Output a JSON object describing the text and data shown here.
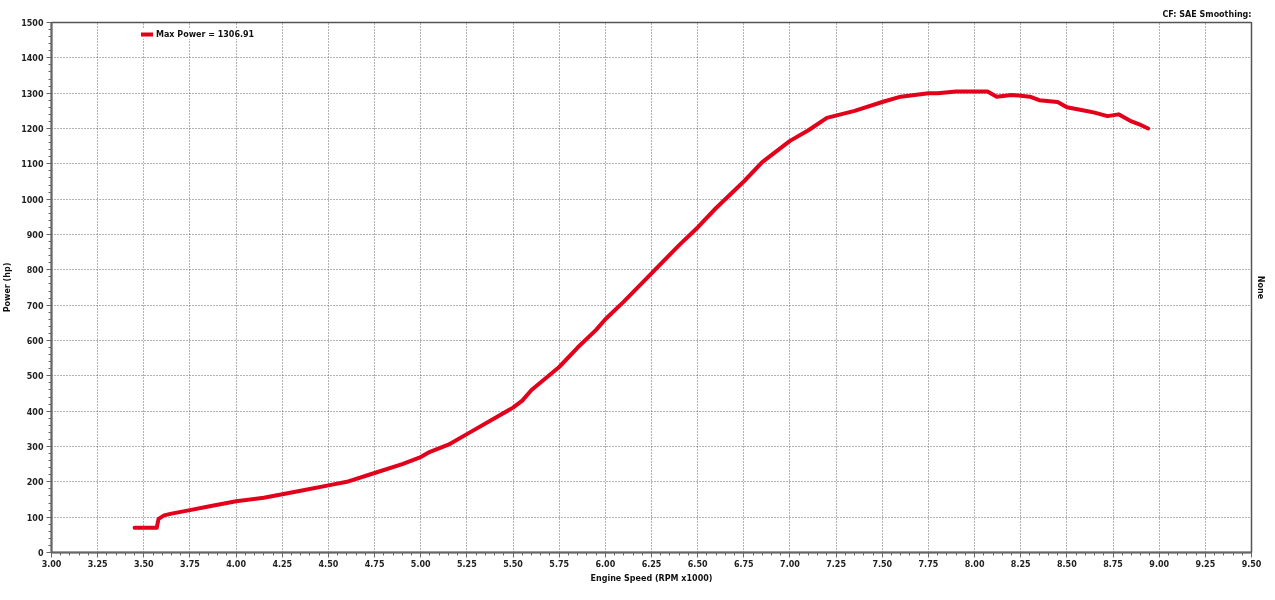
{
  "chart_data": {
    "type": "line",
    "xlabel": "Engine Speed (RPM x1000)",
    "ylabel": "Power (hp)",
    "annotations": [
      "CF: SAE Smoothing:",
      "None"
    ],
    "series": [
      {
        "name": "Max Power = 1306.91",
        "color": "#e2001a",
        "x": [
          3.45,
          3.5,
          3.55,
          3.57,
          3.58,
          3.61,
          3.65,
          3.75,
          3.85,
          4.0,
          4.15,
          4.25,
          4.35,
          4.5,
          4.6,
          4.75,
          4.9,
          5.0,
          5.05,
          5.15,
          5.25,
          5.4,
          5.5,
          5.55,
          5.6,
          5.75,
          5.85,
          5.95,
          6.0,
          6.1,
          6.25,
          6.4,
          6.5,
          6.6,
          6.75,
          6.85,
          7.0,
          7.1,
          7.2,
          7.35,
          7.5,
          7.6,
          7.75,
          7.8,
          7.9,
          8.0,
          8.07,
          8.12,
          8.2,
          8.3,
          8.35,
          8.45,
          8.5,
          8.6,
          8.65,
          8.72,
          8.78,
          8.85,
          8.9,
          8.94
        ],
        "values": [
          70,
          70,
          70,
          70,
          95,
          105,
          110,
          120,
          130,
          145,
          155,
          165,
          175,
          190,
          200,
          225,
          250,
          270,
          285,
          305,
          335,
          380,
          410,
          430,
          460,
          525,
          580,
          630,
          660,
          710,
          790,
          870,
          920,
          975,
          1050,
          1105,
          1165,
          1195,
          1230,
          1250,
          1275,
          1290,
          1300,
          1300,
          1305,
          1305,
          1305,
          1290,
          1295,
          1290,
          1280,
          1275,
          1260,
          1250,
          1245,
          1235,
          1240,
          1220,
          1210,
          1200
        ]
      }
    ],
    "xlim": [
      3.0,
      9.5
    ],
    "xticks": [
      {
        "value": 3.0,
        "label": "3.00"
      },
      3.25,
      {
        "value": 3.5,
        "label": "3.50"
      },
      3.75,
      {
        "value": 4.0,
        "label": "4.00"
      },
      4.25,
      {
        "value": 4.5,
        "label": "4.50"
      },
      4.75,
      {
        "value": 5.0,
        "label": "5.00"
      },
      5.25,
      {
        "value": 5.5,
        "label": "5.50"
      },
      5.75,
      {
        "value": 6.0,
        "label": "6.00"
      },
      6.25,
      {
        "value": 6.5,
        "label": "6.50"
      },
      6.75,
      {
        "value": 7.0,
        "label": "7.00"
      },
      7.25,
      {
        "value": 7.5,
        "label": "7.50"
      },
      7.75,
      {
        "value": 8.0,
        "label": "8.00"
      },
      8.25,
      {
        "value": 8.5,
        "label": "8.50"
      },
      8.75,
      {
        "value": 9.0,
        "label": "9.00"
      },
      9.25,
      {
        "value": 9.5,
        "label": "9.50"
      }
    ],
    "ylim": [
      0,
      1500
    ],
    "yticks": [
      0,
      100,
      200,
      300,
      400,
      500,
      600,
      700,
      800,
      900,
      1000,
      1100,
      1200,
      1300,
      1400,
      1500
    ],
    "grid": true,
    "legend": "top left"
  }
}
